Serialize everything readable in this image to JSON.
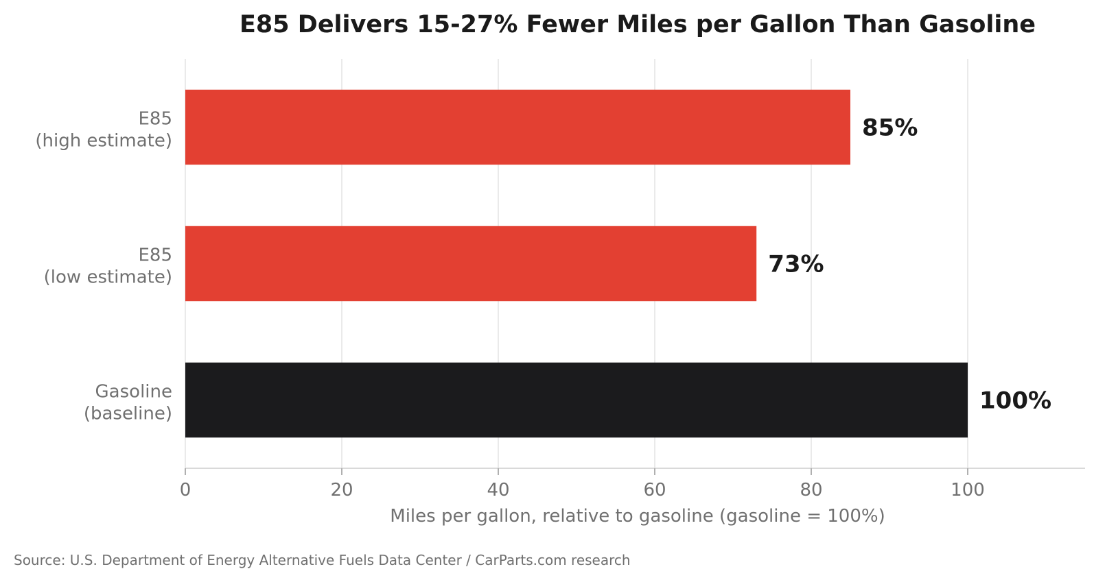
{
  "chart_data": {
    "type": "bar",
    "orientation": "horizontal",
    "title": "E85 Delivers 15-27% Fewer Miles per Gallon Than Gasoline",
    "xlabel": "Miles per gallon, relative to gasoline (gasoline = 100%)",
    "ylabel": "",
    "xlim": [
      0,
      115
    ],
    "xticks": [
      0,
      20,
      40,
      60,
      80,
      100
    ],
    "xtick_labels": [
      "0",
      "20",
      "40",
      "60",
      "80",
      "100"
    ],
    "grid": true,
    "legend": "none",
    "categories": [
      {
        "line1": "E85",
        "line2": "(high estimate)"
      },
      {
        "line1": "E85",
        "line2": "(low estimate)"
      },
      {
        "line1": "Gasoline",
        "line2": "(baseline)"
      }
    ],
    "values": [
      85,
      73,
      100
    ],
    "value_labels": [
      "85%",
      "73%",
      "100%"
    ],
    "colors": [
      "#e34032",
      "#e34032",
      "#1b1b1d"
    ],
    "source": "Source: U.S. Department of Energy Alternative Fuels Data Center / CarParts.com research"
  }
}
